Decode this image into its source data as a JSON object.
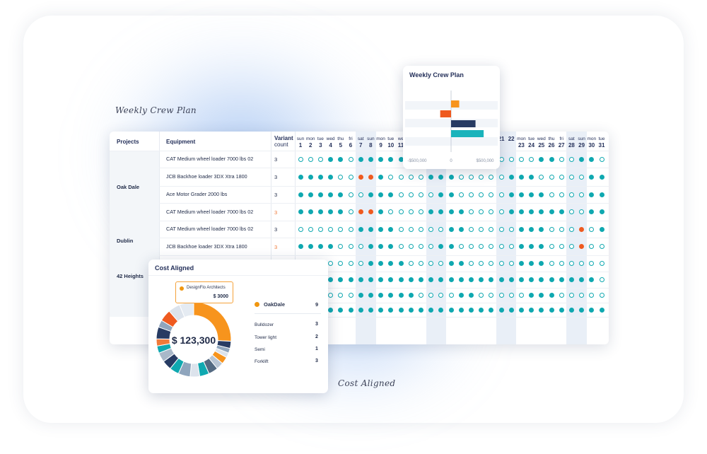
{
  "captions": {
    "weekly_crew_plan": "Weekly Crew Plan",
    "cost_aligned": "Cost Aligned"
  },
  "scheduler": {
    "columns": {
      "projects": "Projects",
      "equipment": "Equipment",
      "variant_line1": "Variant",
      "variant_line2": "count"
    },
    "day_names": [
      "sun",
      "mon",
      "tue",
      "wed",
      "thu",
      "fri",
      "sat",
      "sun",
      "mon",
      "tue",
      "we",
      "",
      "",
      "",
      "",
      "",
      "",
      "",
      "",
      "",
      "",
      "",
      "mon",
      "tue",
      "wed",
      "thu",
      "fri",
      "sat",
      "sun",
      "mon",
      "tue"
    ],
    "day_numbers": [
      "1",
      "2",
      "3",
      "4",
      "5",
      "6",
      "7",
      "8",
      "9",
      "10",
      "11",
      "",
      "",
      "",
      "",
      "",
      "",
      "",
      "",
      "",
      "21",
      "22",
      "23",
      "24",
      "25",
      "26",
      "27",
      "28",
      "29",
      "30",
      "31"
    ],
    "projects": [
      {
        "name": "Oak Dale"
      },
      {
        "name": "Dublin"
      },
      {
        "name": "42 Heights"
      }
    ],
    "rows": [
      {
        "equipment": "CAT Medium wheel loader 7000 lbs 02",
        "variant": "3",
        "variant_orange": false,
        "days": "eeeffeffffffeeeeeffeeeeeffeeffeeefffff"
      },
      {
        "equipment": "JCB Backhoe loader 3DX Xtra 1800",
        "variant": "3",
        "variant_orange": false,
        "days": "ffffeeoofeeeefffeeeeefffeeeeefffe"
      },
      {
        "equipment": "Ace Motor Grader 2000 lbs",
        "variant": "3",
        "variant_orange": false,
        "days": "fffffeefffeeeeffeeeeeffffeeeeffe"
      },
      {
        "equipment": "CAT Medium wheel loader 7000 lbs 02",
        "variant": "3",
        "variant_orange": true,
        "days": "fffffeoofeeeeffffeeeeffffffeeffe"
      },
      {
        "equipment": "CAT Medium wheel loader 7000 lbs 02",
        "variant": "3",
        "variant_orange": false,
        "days": "eeeeeeffffeeeeeffeeeeefffeeeoef"
      },
      {
        "equipment": "JCB Backhoe loader 3DX Xtra 1800",
        "variant": "3",
        "variant_orange": true,
        "days": "ffffeeefffeeeeffeeeeeefffeeeoee"
      },
      {
        "equipment": "",
        "variant": "",
        "variant_orange": false,
        "days": "eeeeeeeffffeeeeffeeeeefffeeeeee"
      },
      {
        "equipment": "",
        "variant": "",
        "variant_orange": false,
        "days": "ffffffffffffffffffffffffffffffe"
      },
      {
        "equipment": "",
        "variant": "",
        "variant_orange": false,
        "days": "eeeeeeffffffeeeeffeeeeefffeeeee"
      },
      {
        "equipment": "",
        "variant": "",
        "variant_orange": false,
        "days": "fffffffffffffffffffffffffffffff"
      }
    ]
  },
  "crew_plan": {
    "title": "Weekly Crew Plan",
    "chart_data": {
      "type": "bar",
      "orientation": "horizontal",
      "xlim": [
        -500000,
        500000
      ],
      "tick_labels": [
        "-$500,000",
        "0",
        "$500,000"
      ],
      "values": [
        90000,
        -120000,
        270000,
        360000
      ],
      "colors": [
        "#f7941d",
        "#ef5a1f",
        "#273b63",
        "#1ab3bb"
      ]
    }
  },
  "cost": {
    "title": "Cost Aligned",
    "total": "$ 123,300",
    "tooltip": {
      "name": "DesignFlo Architects",
      "value": "$ 3000"
    },
    "legend_header": {
      "name": "OakDale",
      "value": "9",
      "color": "#f0960f"
    },
    "legend": [
      {
        "name": "Bulldozer",
        "value": "3"
      },
      {
        "name": "Tower light",
        "value": "2"
      },
      {
        "name": "Semi",
        "value": "1"
      },
      {
        "name": "Forklift",
        "value": "3"
      }
    ],
    "chart_data": {
      "type": "pie",
      "values": [
        25,
        3,
        2,
        2,
        3,
        3,
        4,
        4,
        4,
        5,
        4,
        4,
        4,
        3,
        3,
        5,
        3,
        5,
        5,
        6
      ],
      "colors": [
        "#f7941d",
        "#273b63",
        "#8fa5bd",
        "#dce3ec",
        "#f7941d",
        "#b8c5d4",
        "#546a82",
        "#0fa8b0",
        "#dce3ec",
        "#8fa5bd",
        "#0fa8b0",
        "#273b63",
        "#a9b8c9",
        "#0fa8b0",
        "#f07a3a",
        "#273b63",
        "#8fa5bd",
        "#ef5a1f",
        "#dce3ec",
        "#e5ebf2"
      ]
    }
  }
}
